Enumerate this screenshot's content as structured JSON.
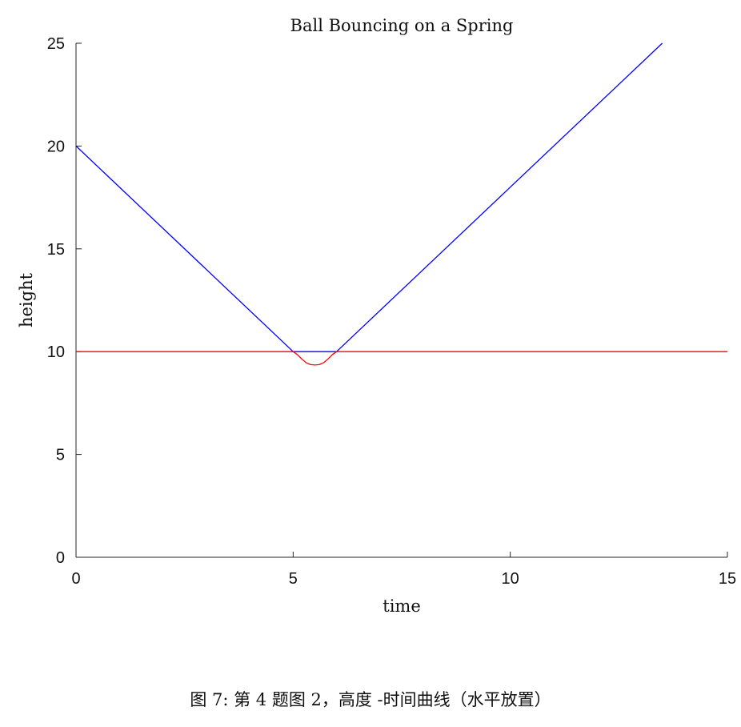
{
  "chart_data": {
    "type": "line",
    "title": "Ball Bouncing on a Spring",
    "xlabel": "time",
    "ylabel": "height",
    "xlim": [
      0,
      15
    ],
    "ylim": [
      0,
      25
    ],
    "xticks": [
      "0",
      "5",
      "10",
      "15"
    ],
    "yticks": [
      "0",
      "5",
      "10",
      "15",
      "20",
      "25"
    ],
    "xtick_values": [
      0,
      5,
      10,
      15
    ],
    "ytick_values": [
      0,
      5,
      10,
      15,
      20,
      25
    ],
    "grid": false,
    "series": [
      {
        "color": "#0000ff",
        "x": [
          0,
          5,
          6,
          13.5
        ],
        "y": [
          20,
          10,
          10,
          25
        ]
      },
      {
        "color": "#ff0000",
        "x": [
          0,
          5,
          5.1,
          5.2,
          5.3,
          5.4,
          5.5,
          5.6,
          5.7,
          5.8,
          5.9,
          6,
          15
        ],
        "y": [
          10,
          10,
          9.85,
          9.64,
          9.46,
          9.37,
          9.35,
          9.37,
          9.46,
          9.64,
          9.85,
          10,
          10
        ]
      }
    ]
  },
  "caption": "图 7: 第 4 题图 2，高度 -时间曲线（水平放置）"
}
